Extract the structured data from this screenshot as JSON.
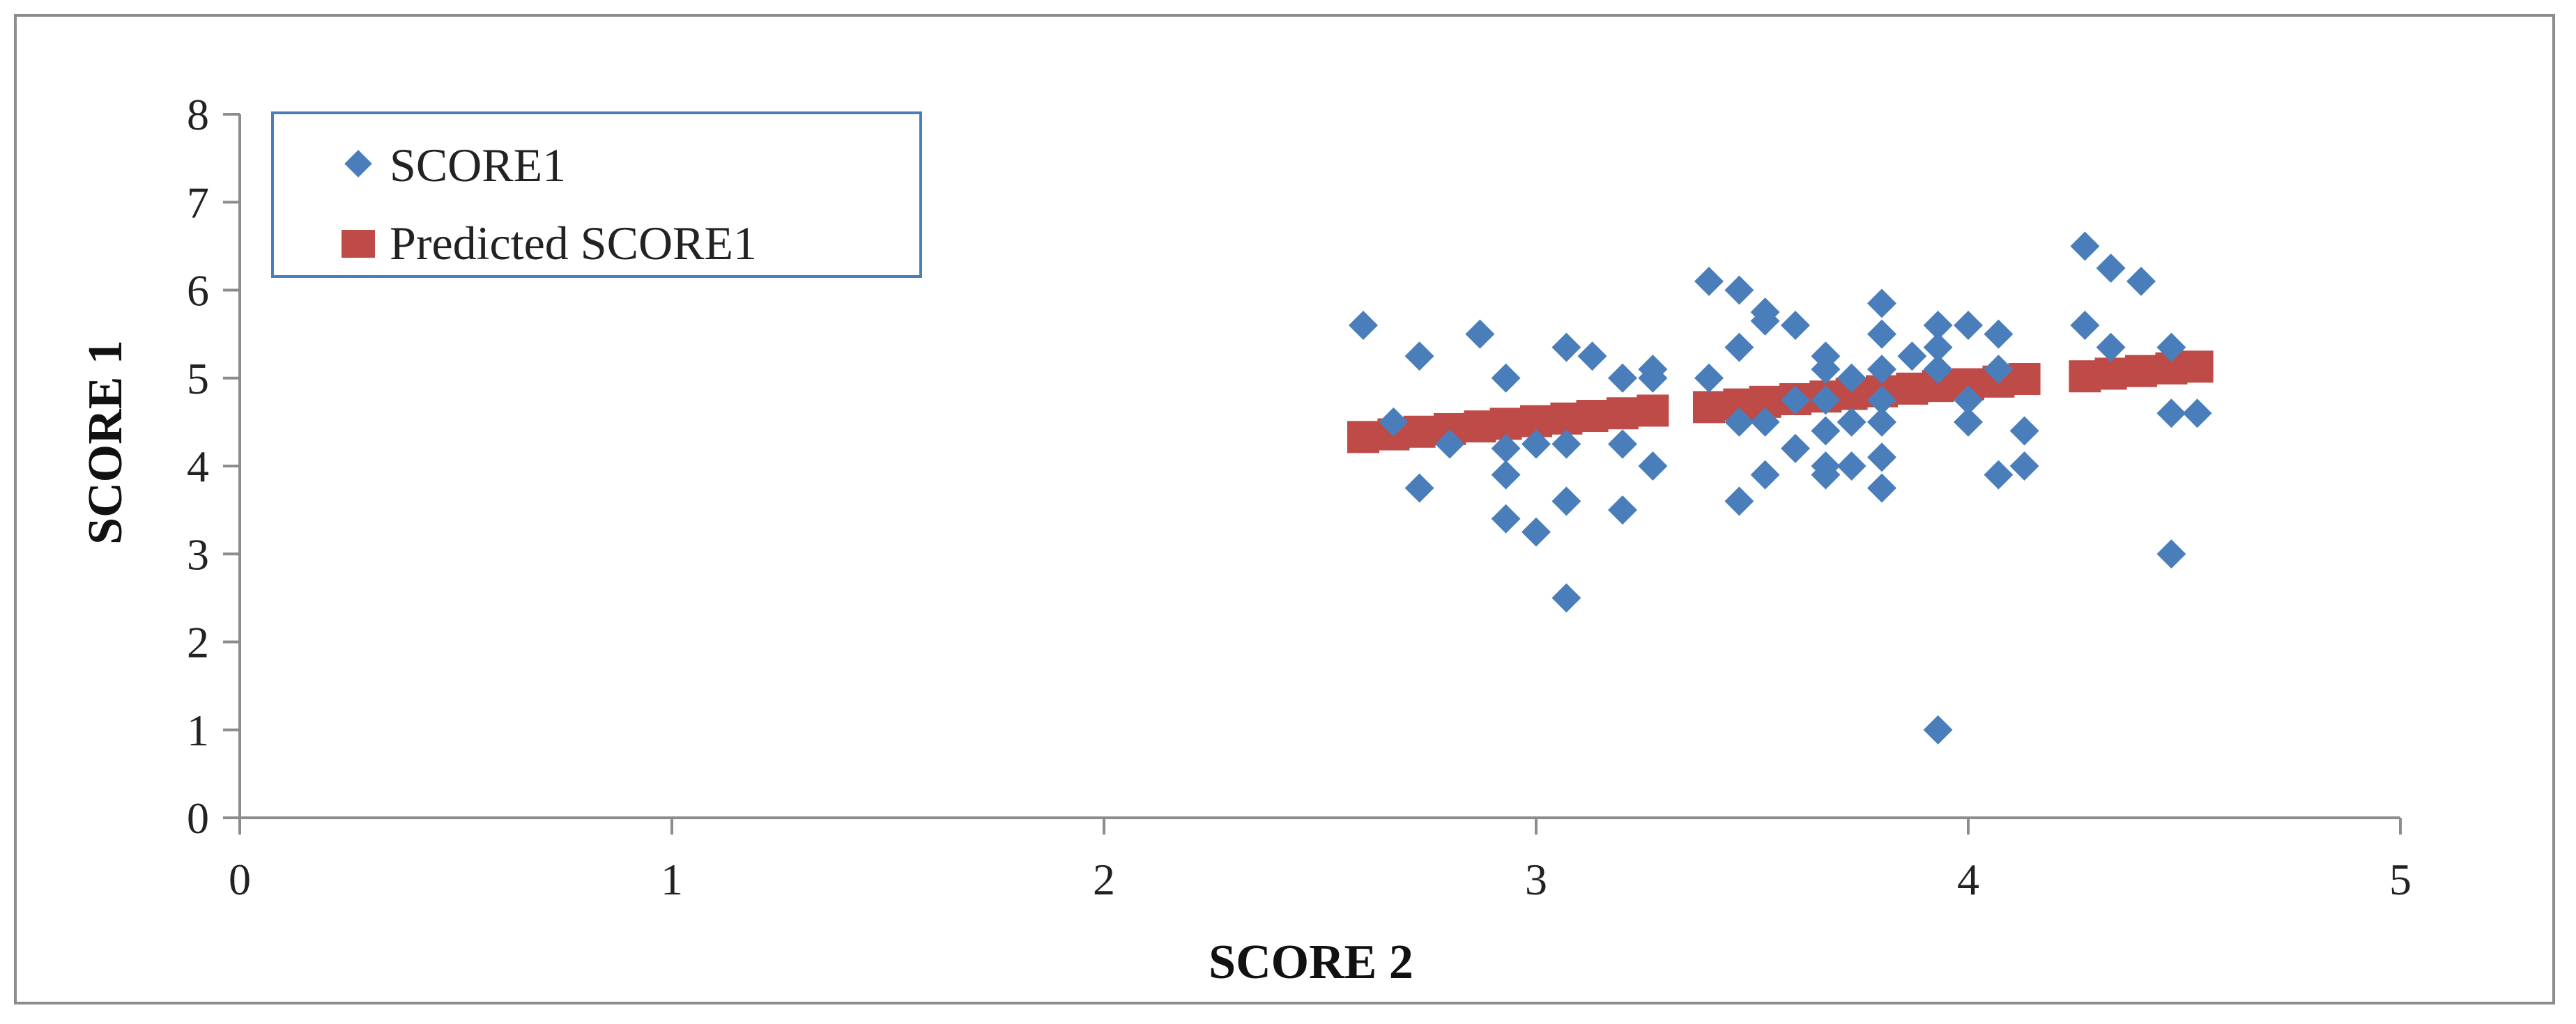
{
  "chart_data": {
    "type": "scatter",
    "title": "",
    "xlabel": "SCORE 2",
    "ylabel": "SCORE 1",
    "xlim": [
      0,
      5
    ],
    "ylim": [
      0,
      8
    ],
    "xticks": [
      "0",
      "1",
      "2",
      "3",
      "4",
      "5"
    ],
    "yticks": [
      "0",
      "1",
      "2",
      "3",
      "4",
      "5",
      "6",
      "7",
      "8"
    ],
    "grid": false,
    "legend_position": "top-left",
    "colors": {
      "observed": "#4a7ebb",
      "predicted": "#be4b48",
      "axis": "#8c8c8c",
      "legend_border": "#4a7ebb"
    },
    "series": [
      {
        "name": "SCORE1",
        "marker": "diamond",
        "points": [
          [
            2.6,
            5.6
          ],
          [
            2.67,
            4.5
          ],
          [
            2.73,
            5.25
          ],
          [
            2.73,
            3.75
          ],
          [
            2.8,
            4.25
          ],
          [
            2.87,
            5.5
          ],
          [
            2.93,
            5.0
          ],
          [
            2.93,
            4.2
          ],
          [
            2.93,
            3.9
          ],
          [
            2.93,
            3.4
          ],
          [
            3.0,
            4.25
          ],
          [
            3.0,
            3.25
          ],
          [
            3.07,
            5.35
          ],
          [
            3.07,
            4.25
          ],
          [
            3.07,
            3.6
          ],
          [
            3.07,
            2.5
          ],
          [
            3.13,
            5.25
          ],
          [
            3.2,
            5.0
          ],
          [
            3.2,
            4.25
          ],
          [
            3.2,
            3.5
          ],
          [
            3.27,
            5.1
          ],
          [
            3.27,
            5.0
          ],
          [
            3.27,
            4.0
          ],
          [
            3.4,
            6.1
          ],
          [
            3.4,
            5.0
          ],
          [
            3.47,
            6.0
          ],
          [
            3.47,
            5.35
          ],
          [
            3.47,
            4.5
          ],
          [
            3.47,
            3.6
          ],
          [
            3.53,
            5.75
          ],
          [
            3.53,
            5.65
          ],
          [
            3.53,
            4.5
          ],
          [
            3.53,
            3.9
          ],
          [
            3.6,
            5.6
          ],
          [
            3.6,
            4.75
          ],
          [
            3.6,
            4.2
          ],
          [
            3.67,
            5.25
          ],
          [
            3.67,
            5.1
          ],
          [
            3.67,
            4.75
          ],
          [
            3.67,
            4.4
          ],
          [
            3.67,
            4.0
          ],
          [
            3.67,
            3.9
          ],
          [
            3.73,
            5.0
          ],
          [
            3.73,
            4.5
          ],
          [
            3.73,
            4.0
          ],
          [
            3.8,
            5.85
          ],
          [
            3.8,
            5.5
          ],
          [
            3.8,
            5.1
          ],
          [
            3.8,
            4.75
          ],
          [
            3.8,
            4.5
          ],
          [
            3.8,
            4.1
          ],
          [
            3.8,
            3.75
          ],
          [
            3.87,
            5.25
          ],
          [
            3.93,
            5.6
          ],
          [
            3.93,
            5.35
          ],
          [
            3.93,
            5.1
          ],
          [
            3.93,
            1.0
          ],
          [
            4.0,
            5.6
          ],
          [
            4.0,
            4.75
          ],
          [
            4.0,
            4.5
          ],
          [
            4.07,
            5.5
          ],
          [
            4.07,
            5.1
          ],
          [
            4.07,
            3.9
          ],
          [
            4.13,
            4.4
          ],
          [
            4.13,
            4.0
          ],
          [
            4.27,
            6.5
          ],
          [
            4.27,
            5.6
          ],
          [
            4.33,
            6.25
          ],
          [
            4.33,
            5.35
          ],
          [
            4.4,
            6.1
          ],
          [
            4.47,
            5.35
          ],
          [
            4.47,
            4.6
          ],
          [
            4.47,
            3.0
          ],
          [
            4.53,
            4.6
          ]
        ]
      },
      {
        "name": "Predicted SCORE1",
        "marker": "square",
        "points": [
          [
            2.6,
            4.33
          ],
          [
            2.67,
            4.36
          ],
          [
            2.73,
            4.39
          ],
          [
            2.8,
            4.42
          ],
          [
            2.87,
            4.45
          ],
          [
            2.93,
            4.48
          ],
          [
            3.0,
            4.51
          ],
          [
            3.07,
            4.54
          ],
          [
            3.13,
            4.57
          ],
          [
            3.2,
            4.6
          ],
          [
            3.27,
            4.63
          ],
          [
            3.4,
            4.67
          ],
          [
            3.47,
            4.7
          ],
          [
            3.53,
            4.73
          ],
          [
            3.6,
            4.76
          ],
          [
            3.67,
            4.79
          ],
          [
            3.73,
            4.82
          ],
          [
            3.8,
            4.85
          ],
          [
            3.87,
            4.88
          ],
          [
            3.93,
            4.91
          ],
          [
            4.0,
            4.93
          ],
          [
            4.07,
            4.96
          ],
          [
            4.13,
            4.99
          ],
          [
            4.27,
            5.02
          ],
          [
            4.33,
            5.05
          ],
          [
            4.4,
            5.08
          ],
          [
            4.47,
            5.11
          ],
          [
            4.53,
            5.13
          ]
        ]
      }
    ]
  }
}
